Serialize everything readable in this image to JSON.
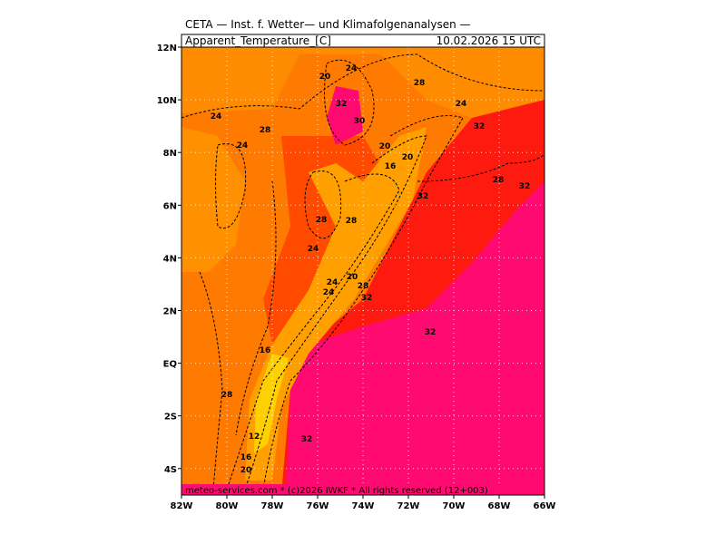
{
  "header": {
    "title": "CETA — Inst. f. Wetter— und Klimafolgenanalysen —",
    "variable": "Apparent_Temperature_[C]",
    "valid_time": "10.02.2026 15 UTC"
  },
  "map": {
    "lat_labels": [
      "12N",
      "10N",
      "8N",
      "6N",
      "4N",
      "2N",
      "EQ",
      "2S",
      "4S"
    ],
    "lon_labels": [
      "82W",
      "80W",
      "78W",
      "76W",
      "74W",
      "72W",
      "70W",
      "68W",
      "66W"
    ],
    "contour_labels": [
      20,
      24,
      28,
      32,
      30,
      24,
      28,
      24,
      24,
      32,
      20,
      16,
      20,
      32,
      28,
      32,
      28,
      28,
      24,
      20,
      24,
      24,
      28,
      32,
      32,
      16,
      28,
      12,
      32,
      16,
      20
    ]
  },
  "footer": "meteo-services.com * (c)2026 IWKF * All rights reserved (12+003)"
}
